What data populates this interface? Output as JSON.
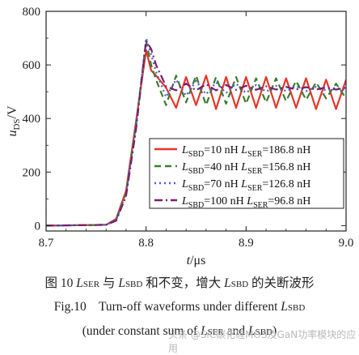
{
  "chart_data": {
    "type": "line",
    "xlabel_var": "t",
    "xlabel_unit": "/μs",
    "ylabel_var": "u",
    "ylabel_sub": "DS",
    "ylabel_unit": "/V",
    "xlim": [
      8.7,
      9.0
    ],
    "ylim": [
      -20,
      800
    ],
    "x_ticks": [
      8.7,
      8.8,
      8.9,
      9.0
    ],
    "x_tick_labels": [
      "8.7",
      "8.8",
      "8.9",
      "9.0"
    ],
    "y_ticks": [
      0,
      200,
      400,
      600,
      800
    ],
    "y_tick_labels": [
      "0",
      "200",
      "400",
      "600",
      "800"
    ],
    "grid": false,
    "legend_position": "lower-right",
    "series": [
      {
        "name_a": "L",
        "sub_a": "SBD",
        "val_a": "=10 nH",
        "name_b": "L",
        "sub_b": "SER",
        "val_b": "=186.8 nH",
        "color": "#e8352a",
        "dash": "solid",
        "points": [
          [
            8.7,
            0
          ],
          [
            8.76,
            3
          ],
          [
            8.77,
            25
          ],
          [
            8.78,
            130
          ],
          [
            8.79,
            390
          ],
          [
            8.8,
            655
          ],
          [
            8.805,
            580
          ],
          [
            8.81,
            560
          ],
          [
            8.82,
            515
          ],
          [
            8.83,
            440
          ],
          [
            8.84,
            555
          ],
          [
            8.85,
            450
          ],
          [
            8.86,
            560
          ],
          [
            8.87,
            435
          ],
          [
            8.88,
            555
          ],
          [
            8.89,
            440
          ],
          [
            8.9,
            555
          ],
          [
            8.91,
            440
          ],
          [
            8.92,
            555
          ],
          [
            8.93,
            440
          ],
          [
            8.94,
            550
          ],
          [
            8.95,
            440
          ],
          [
            8.96,
            550
          ],
          [
            8.97,
            435
          ],
          [
            8.98,
            545
          ],
          [
            8.99,
            435
          ],
          [
            9.0,
            545
          ]
        ]
      },
      {
        "name_a": "L",
        "sub_a": "SBD",
        "val_a": "=40 nH",
        "name_b": "L",
        "sub_b": "SER",
        "val_b": "=156.8 nH",
        "color": "#3a7d2f",
        "dash": "8,5",
        "points": [
          [
            8.7,
            0
          ],
          [
            8.76,
            3
          ],
          [
            8.77,
            22
          ],
          [
            8.78,
            120
          ],
          [
            8.79,
            380
          ],
          [
            8.8,
            690
          ],
          [
            8.805,
            600
          ],
          [
            8.81,
            545
          ],
          [
            8.82,
            450
          ],
          [
            8.83,
            560
          ],
          [
            8.84,
            460
          ],
          [
            8.85,
            560
          ],
          [
            8.86,
            450
          ],
          [
            8.87,
            555
          ],
          [
            8.88,
            455
          ],
          [
            8.89,
            555
          ],
          [
            8.9,
            455
          ],
          [
            8.91,
            550
          ],
          [
            8.92,
            460
          ],
          [
            8.93,
            550
          ],
          [
            8.94,
            465
          ],
          [
            8.95,
            540
          ],
          [
            8.96,
            470
          ],
          [
            8.97,
            535
          ],
          [
            8.98,
            475
          ],
          [
            8.99,
            530
          ],
          [
            9.0,
            475
          ]
        ]
      },
      {
        "name_a": "L",
        "sub_a": "SBD",
        "val_a": "=70 nH",
        "name_b": "L",
        "sub_b": "SER",
        "val_b": "=126.8 nH",
        "color": "#4b5bd6",
        "dash": "2,4",
        "points": [
          [
            8.7,
            0
          ],
          [
            8.76,
            3
          ],
          [
            8.77,
            20
          ],
          [
            8.78,
            115
          ],
          [
            8.79,
            370
          ],
          [
            8.8,
            700
          ],
          [
            8.805,
            640
          ],
          [
            8.81,
            575
          ],
          [
            8.82,
            480
          ],
          [
            8.83,
            545
          ],
          [
            8.84,
            485
          ],
          [
            8.85,
            540
          ],
          [
            8.86,
            490
          ],
          [
            8.87,
            535
          ],
          [
            8.88,
            495
          ],
          [
            8.89,
            530
          ],
          [
            8.9,
            495
          ],
          [
            8.91,
            525
          ],
          [
            8.92,
            500
          ],
          [
            8.93,
            522
          ],
          [
            8.94,
            502
          ],
          [
            8.95,
            520
          ],
          [
            8.96,
            502
          ],
          [
            8.97,
            518
          ],
          [
            8.98,
            505
          ],
          [
            8.99,
            515
          ],
          [
            9.0,
            505
          ]
        ]
      },
      {
        "name_a": "L",
        "sub_a": "SBD",
        "val_a": "=100 nH",
        "name_b": "L",
        "sub_b": "SER",
        "val_b": "=96.8 nH",
        "color": "#7a1f6e",
        "dash": "10,4,2,4",
        "points": [
          [
            8.7,
            0
          ],
          [
            8.76,
            3
          ],
          [
            8.77,
            18
          ],
          [
            8.78,
            110
          ],
          [
            8.79,
            360
          ],
          [
            8.8,
            690
          ],
          [
            8.805,
            660
          ],
          [
            8.81,
            600
          ],
          [
            8.82,
            520
          ],
          [
            8.83,
            505
          ],
          [
            8.84,
            530
          ],
          [
            8.85,
            505
          ],
          [
            8.86,
            528
          ],
          [
            8.87,
            505
          ],
          [
            8.88,
            525
          ],
          [
            8.89,
            507
          ],
          [
            8.9,
            522
          ],
          [
            8.91,
            507
          ],
          [
            8.92,
            520
          ],
          [
            8.93,
            508
          ],
          [
            8.94,
            518
          ],
          [
            8.95,
            508
          ],
          [
            8.96,
            517
          ],
          [
            8.97,
            508
          ],
          [
            8.98,
            516
          ],
          [
            8.99,
            508
          ],
          [
            9.0,
            515
          ]
        ]
      }
    ]
  },
  "caption": {
    "cn_prefix": "图 10   ",
    "cn_l1": "L",
    "cn_l1_sub": "SER",
    "cn_mid": " 与 ",
    "cn_l2": "L",
    "cn_l2_sub": "SBD",
    "cn_mid2": " 和不变，增大 ",
    "cn_l3": "L",
    "cn_l3_sub": "SBD",
    "cn_end": " 的关断波形",
    "en1_prefix": "Fig.10    Turn-off waveforms under different ",
    "en1_l": "L",
    "en1_sub": "SBD",
    "en2_prefix": "(under constant sum of ",
    "en2_l1": "L",
    "en2_sub1": "SER",
    "en2_and": " and ",
    "en2_l2": "L",
    "en2_sub2": "SBD",
    "en2_end": ")"
  },
  "watermark": "头条 @SiC碳化硅MOS及GaN功率模块的应用"
}
